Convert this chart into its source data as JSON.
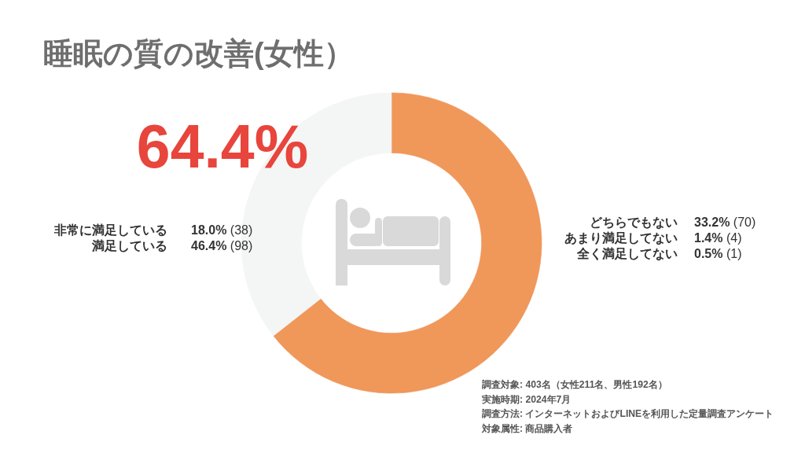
{
  "chart_data": {
    "type": "donut",
    "title": "睡眠の質の改善(女性）",
    "categories": [
      null,
      null
    ],
    "values": [
      64.4,
      35.6
    ],
    "colors": [
      "#f0975a",
      "#f4f5f5"
    ],
    "annotations": [
      "64.4%",
      "非常に満足している",
      "**18.0%** (38)",
      "満足している",
      "**46.4%** (98)",
      "どちらでもない",
      "**33.2%** (70)",
      "あまり満足してない",
      "**1.4%** (4)",
      "全く満足してない",
      "**0.5%** (1)",
      "調査対象: 403名（女性211名、男性192名）",
      "実施時期: 2024年7月",
      "調査方法: インターネットおよびLINEを利用した定量調査アンケート",
      "対象属性: 商品購入者"
    ]
  }
}
